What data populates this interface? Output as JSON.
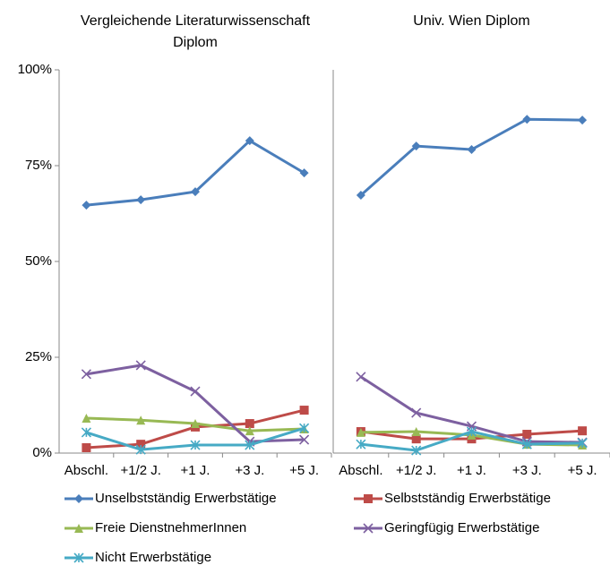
{
  "chart_data": [
    {
      "type": "line",
      "title": "Vergleichende Literaturwissenschaft Diplom",
      "categories": [
        "Abschl.",
        "+1/2 J.",
        "+1 J.",
        "+3 J.",
        "+5 J."
      ],
      "ylim": [
        0,
        100
      ],
      "yticks": [
        {
          "value": 0,
          "label": "0%"
        },
        {
          "value": 25,
          "label": "25%"
        },
        {
          "value": 50,
          "label": "50%"
        },
        {
          "value": 75,
          "label": "75%"
        },
        {
          "value": 100,
          "label": "100%"
        }
      ],
      "legend": "bottom",
      "series": [
        {
          "name": "Unselbstständig Erwerbstätige",
          "color": "#4a7ebb",
          "marker": "diamond",
          "values": [
            64.7,
            66.1,
            68.2,
            81.5,
            73.1
          ]
        },
        {
          "name": "Selbstständig Erwerbstätige",
          "color": "#be4b48",
          "marker": "square",
          "values": [
            1.4,
            2.3,
            6.8,
            7.7,
            11.2
          ]
        },
        {
          "name": "Freie DienstnehmerInnen",
          "color": "#98b954",
          "marker": "triangle",
          "values": [
            9.1,
            8.6,
            7.7,
            5.8,
            6.3
          ]
        },
        {
          "name": "Geringfügig Erwerbstätige",
          "color": "#7d60a0",
          "marker": "x",
          "values": [
            20.6,
            22.9,
            16.1,
            3.0,
            3.5
          ]
        },
        {
          "name": "Nicht Erwerbstätige",
          "color": "#46aac5",
          "marker": "star",
          "values": [
            5.4,
            0.9,
            2.1,
            2.1,
            6.5
          ]
        }
      ]
    },
    {
      "type": "line",
      "title": "Univ. Wien Diplom",
      "categories": [
        "Abschl.",
        "+1/2 J.",
        "+1 J.",
        "+3 J.",
        "+5 J."
      ],
      "ylim": [
        0,
        100
      ],
      "series": [
        {
          "name": "Unselbstständig Erwerbstätige",
          "color": "#4a7ebb",
          "marker": "diamond",
          "values": [
            67.3,
            80.1,
            79.2,
            87.1,
            86.9
          ]
        },
        {
          "name": "Selbstständig Erwerbstätige",
          "color": "#be4b48",
          "marker": "square",
          "values": [
            5.6,
            3.7,
            3.7,
            4.9,
            5.8
          ]
        },
        {
          "name": "Freie DienstnehmerInnen",
          "color": "#98b954",
          "marker": "triangle",
          "values": [
            5.4,
            5.6,
            4.7,
            2.3,
            2.1
          ]
        },
        {
          "name": "Geringfügig Erwerbstätige",
          "color": "#7d60a0",
          "marker": "x",
          "values": [
            19.9,
            10.5,
            7.0,
            3.0,
            2.8
          ]
        },
        {
          "name": "Nicht Erwerbstätige",
          "color": "#46aac5",
          "marker": "star",
          "values": [
            2.3,
            0.7,
            5.6,
            2.3,
            2.6
          ]
        }
      ]
    }
  ]
}
